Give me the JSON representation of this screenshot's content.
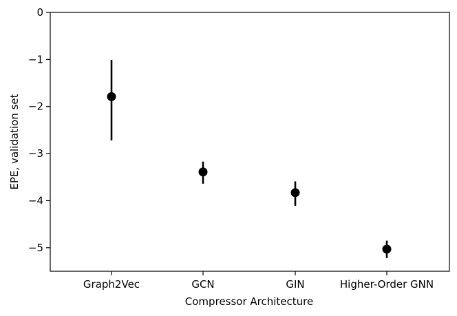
{
  "chart_data": {
    "type": "scatter",
    "title": "",
    "xlabel": "Compressor Architecture",
    "ylabel": "EPE, validation set",
    "categories": [
      "Graph2Vec",
      "GCN",
      "GIN",
      "Higher-Order GNN"
    ],
    "series": [
      {
        "values": [
          -1.79,
          -3.39,
          -3.83,
          -5.03
        ],
        "err_low": [
          -2.72,
          -3.64,
          -4.11,
          -5.22
        ],
        "err_high": [
          -1.01,
          -3.17,
          -3.59,
          -4.85
        ]
      }
    ],
    "ylim": [
      -5.5,
      0
    ],
    "yticks": [
      {
        "value": 0,
        "label": "0"
      },
      {
        "value": -1,
        "label": "−1"
      },
      {
        "value": -2,
        "label": "−2"
      },
      {
        "value": -3,
        "label": "−3"
      },
      {
        "value": -4,
        "label": "−4"
      },
      {
        "value": -5,
        "label": "−5"
      }
    ],
    "grid": false,
    "marker_color": "#000000"
  }
}
